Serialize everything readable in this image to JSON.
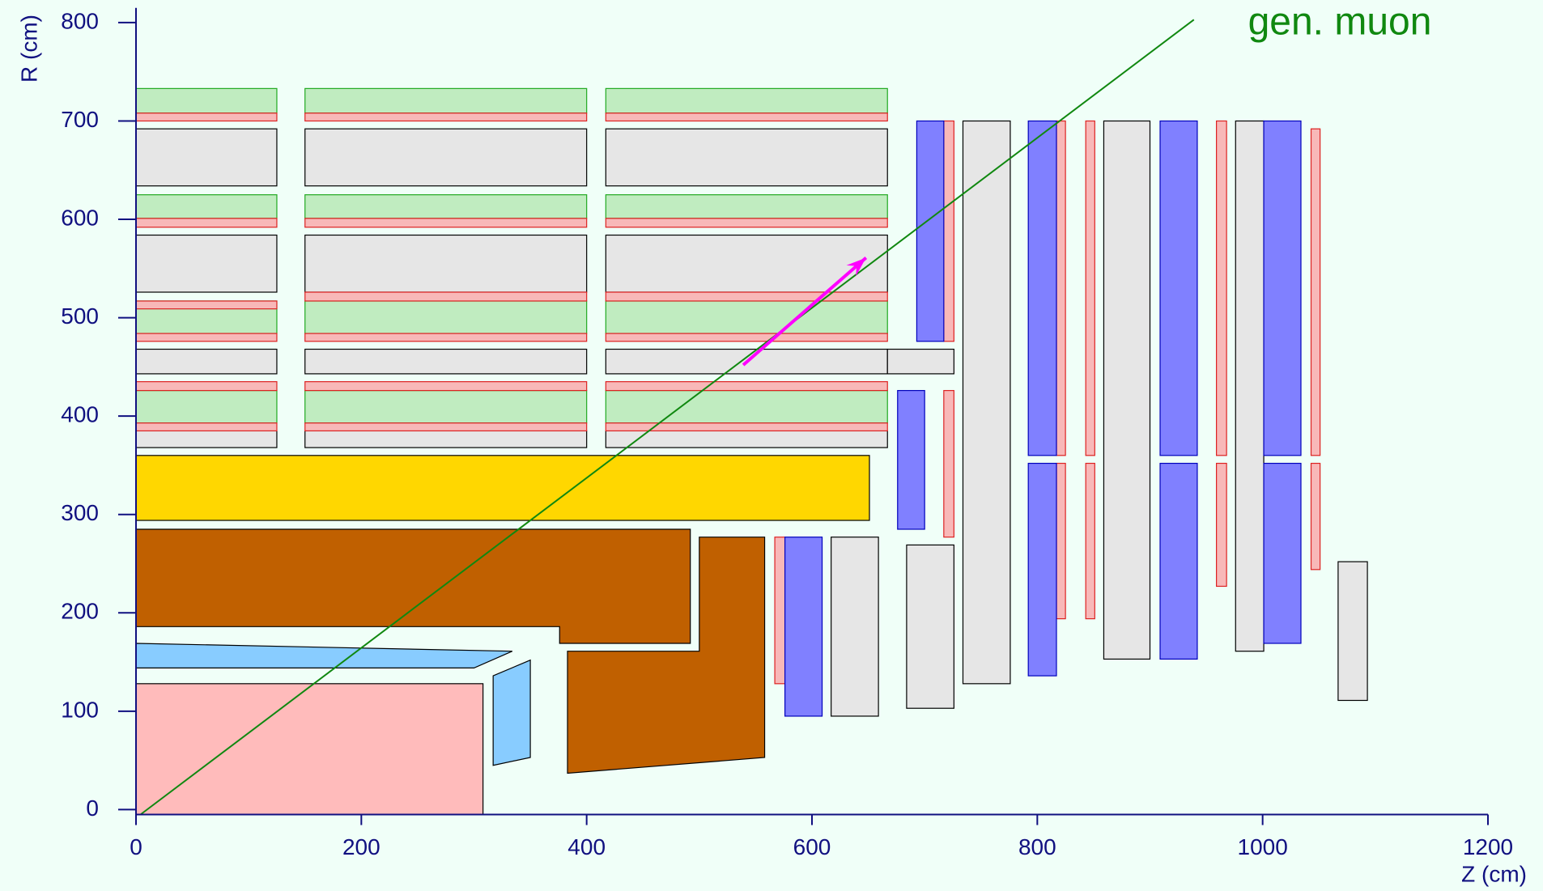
{
  "chart_data": {
    "type": "detector",
    "xlabel": "Z (cm)",
    "ylabel": "R (cm)",
    "annotation": "gen. muon",
    "xlim": [
      0,
      1200
    ],
    "ylim": [
      -5,
      815
    ],
    "xticks": [
      0,
      200,
      400,
      600,
      800,
      1000,
      1200
    ],
    "yticks": [
      0,
      100,
      200,
      300,
      400,
      500,
      600,
      700,
      800
    ],
    "axis_color": "#101080",
    "rect_groups": [
      {
        "fill": "#e6e6e6",
        "stroke": "#000000",
        "rects": [
          [
            0,
            125,
            368,
            385
          ],
          [
            150,
            400,
            368,
            385
          ],
          [
            417,
            667,
            368,
            385
          ],
          [
            0,
            125,
            443,
            468
          ],
          [
            150,
            400,
            443,
            468
          ],
          [
            417,
            667,
            443,
            468
          ],
          [
            667,
            726,
            443,
            468
          ],
          [
            0,
            125,
            526,
            584
          ],
          [
            150,
            400,
            526,
            584
          ],
          [
            417,
            667,
            526,
            584
          ],
          [
            0,
            125,
            634,
            692
          ],
          [
            150,
            400,
            634,
            692
          ],
          [
            417,
            667,
            634,
            692
          ],
          [
            734,
            776,
            128,
            700
          ],
          [
            617,
            659,
            95,
            277
          ],
          [
            684,
            726,
            103,
            269
          ],
          [
            859,
            900,
            153,
            700
          ],
          [
            976,
            1001,
            161,
            700
          ],
          [
            1067,
            1093,
            111,
            252
          ]
        ]
      },
      {
        "fill": "#c0ecc0",
        "stroke": "#22aa22",
        "rects": [
          [
            0,
            125,
            393,
            426
          ],
          [
            150,
            400,
            393,
            426
          ],
          [
            417,
            667,
            393,
            426
          ],
          [
            0,
            125,
            484,
            517
          ],
          [
            150,
            400,
            484,
            517
          ],
          [
            417,
            667,
            484,
            517
          ],
          [
            0,
            125,
            601,
            625
          ],
          [
            150,
            400,
            601,
            625
          ],
          [
            417,
            667,
            601,
            625
          ],
          [
            0,
            125,
            708,
            733
          ],
          [
            150,
            400,
            708,
            733
          ],
          [
            417,
            667,
            708,
            733
          ]
        ]
      },
      {
        "fill": "#f8b8b8",
        "stroke": "#dd2222",
        "rects": [
          [
            0,
            125,
            385,
            393
          ],
          [
            150,
            400,
            385,
            393
          ],
          [
            417,
            667,
            385,
            393
          ],
          [
            0,
            125,
            426,
            435
          ],
          [
            150,
            400,
            426,
            435
          ],
          [
            417,
            667,
            426,
            435
          ],
          [
            0,
            125,
            476,
            484
          ],
          [
            150,
            400,
            476,
            484
          ],
          [
            417,
            667,
            476,
            484
          ],
          [
            0,
            125,
            509,
            517
          ],
          [
            150,
            400,
            517,
            526
          ],
          [
            417,
            667,
            517,
            526
          ],
          [
            0,
            125,
            592,
            601
          ],
          [
            150,
            400,
            592,
            601
          ],
          [
            417,
            667,
            592,
            601
          ],
          [
            0,
            125,
            700,
            708
          ],
          [
            150,
            400,
            700,
            708
          ],
          [
            417,
            667,
            700,
            708
          ],
          [
            717,
            726,
            476,
            700
          ],
          [
            717,
            726,
            277,
            426
          ],
          [
            567,
            576,
            128,
            277
          ],
          [
            817,
            825,
            360,
            700
          ],
          [
            817,
            825,
            194,
            352
          ],
          [
            843,
            851,
            360,
            700
          ],
          [
            843,
            851,
            194,
            352
          ],
          [
            959,
            968,
            360,
            700
          ],
          [
            959,
            968,
            227,
            352
          ],
          [
            1043,
            1051,
            360,
            692
          ],
          [
            1043,
            1051,
            244,
            352
          ]
        ]
      },
      {
        "fill": "#8080ff",
        "stroke": "#0000bb",
        "rects": [
          [
            693,
            717,
            476,
            700
          ],
          [
            676,
            700,
            285,
            426
          ],
          [
            576,
            609,
            95,
            277
          ],
          [
            792,
            817,
            360,
            700
          ],
          [
            792,
            817,
            136,
            352
          ],
          [
            909,
            942,
            360,
            700
          ],
          [
            909,
            942,
            153,
            352
          ],
          [
            1001,
            1034,
            360,
            700
          ],
          [
            1001,
            1034,
            169,
            352
          ]
        ]
      },
      {
        "fill": "#ffd700",
        "stroke": "#000000",
        "rects": [
          [
            0,
            651,
            294,
            360
          ]
        ]
      },
      {
        "fill": "#ffbbbb",
        "stroke": "#000000",
        "rects": [
          [
            0,
            308,
            -5,
            128
          ]
        ]
      }
    ],
    "polygons": [
      {
        "fill": "#c06000",
        "stroke": "#000000",
        "z": [
          0,
          492,
          492,
          376,
          376,
          0
        ],
        "r": [
          285,
          285,
          169,
          169,
          186,
          186
        ]
      },
      {
        "fill": "#c06000",
        "stroke": "#000000",
        "z": [
          500,
          558,
          558,
          383,
          383,
          500
        ],
        "r": [
          277,
          277,
          53,
          37,
          161,
          161
        ]
      },
      {
        "fill": "#88ccff",
        "stroke": "#000000",
        "z": [
          0,
          334,
          300,
          0
        ],
        "r": [
          169,
          161,
          144,
          144
        ]
      },
      {
        "fill": "#88ccff",
        "stroke": "#000000",
        "z": [
          317,
          350,
          350,
          317
        ],
        "r": [
          136,
          152,
          53,
          45
        ]
      }
    ],
    "track": {
      "color": "#108810",
      "z": [
        4,
        939
      ],
      "r": [
        -5,
        803
      ]
    },
    "arrow": {
      "color": "#ff00ff",
      "z": [
        539,
        648
      ],
      "r": [
        452,
        561
      ]
    }
  }
}
